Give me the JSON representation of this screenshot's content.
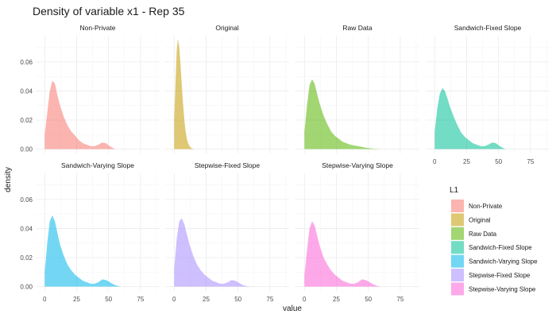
{
  "chart_data": {
    "type": "area",
    "title": "Density of variable x1 - Rep 35",
    "xlabel": "value",
    "ylabel": "density",
    "xlim": [
      -7,
      90
    ],
    "ylim": [
      -0.003,
      0.078
    ],
    "x_ticks": [
      0,
      25,
      50,
      75
    ],
    "y_ticks": [
      0.0,
      0.02,
      0.04,
      0.06
    ],
    "y_tick_labels": [
      "0.00",
      "0.02",
      "0.04",
      "0.06"
    ],
    "grid": true,
    "legend_title": "L1",
    "legend_position": "right",
    "series": [
      {
        "name": "Non-Private",
        "color": "#F8766D",
        "x": [
          0,
          2,
          4,
          6,
          8,
          10,
          12,
          15,
          18,
          21,
          24,
          27,
          30,
          33,
          36,
          39,
          42,
          45,
          48,
          51,
          54,
          56
        ],
        "y": [
          0.01,
          0.025,
          0.04,
          0.047,
          0.045,
          0.037,
          0.03,
          0.022,
          0.016,
          0.012,
          0.009,
          0.006,
          0.004,
          0.003,
          0.002,
          0.002,
          0.003,
          0.0045,
          0.004,
          0.002,
          0.0005,
          0.0
        ]
      },
      {
        "name": "Original",
        "color": "#C49A00",
        "x": [
          0,
          1,
          2,
          3,
          4,
          5,
          6,
          7,
          8,
          9,
          10,
          11,
          12,
          13,
          14,
          15,
          16
        ],
        "y": [
          0.02,
          0.045,
          0.068,
          0.076,
          0.07,
          0.058,
          0.044,
          0.031,
          0.02,
          0.012,
          0.007,
          0.004,
          0.002,
          0.001,
          0.0005,
          0.0002,
          0.0
        ]
      },
      {
        "name": "Raw Data",
        "color": "#53B400",
        "x": [
          0,
          2,
          4,
          6,
          8,
          10,
          12,
          15,
          18,
          21,
          24,
          27,
          30,
          33,
          36,
          39,
          42,
          45,
          48,
          51,
          54,
          57,
          60
        ],
        "y": [
          0.012,
          0.03,
          0.044,
          0.048,
          0.045,
          0.038,
          0.031,
          0.023,
          0.017,
          0.012,
          0.009,
          0.007,
          0.005,
          0.004,
          0.003,
          0.0025,
          0.002,
          0.0015,
          0.001,
          0.0006,
          0.0003,
          0.0001,
          0.0
        ]
      },
      {
        "name": "Sandwich-Fixed Slope",
        "color": "#00C094",
        "x": [
          0,
          2,
          4,
          6,
          8,
          10,
          12,
          15,
          18,
          21,
          24,
          27,
          30,
          33,
          36,
          39,
          42,
          45,
          48,
          51,
          54,
          56
        ],
        "y": [
          0.012,
          0.028,
          0.038,
          0.042,
          0.04,
          0.035,
          0.029,
          0.022,
          0.016,
          0.011,
          0.008,
          0.006,
          0.004,
          0.003,
          0.002,
          0.002,
          0.003,
          0.0045,
          0.004,
          0.002,
          0.0005,
          0.0
        ]
      },
      {
        "name": "Sandwich-Varying Slope",
        "color": "#00B6EB",
        "x": [
          0,
          2,
          4,
          6,
          8,
          10,
          12,
          15,
          18,
          21,
          24,
          27,
          30,
          33,
          36,
          39,
          42,
          45,
          48,
          51,
          54,
          57,
          60
        ],
        "y": [
          0.01,
          0.03,
          0.045,
          0.049,
          0.045,
          0.037,
          0.029,
          0.021,
          0.015,
          0.011,
          0.008,
          0.006,
          0.004,
          0.003,
          0.002,
          0.002,
          0.003,
          0.005,
          0.0045,
          0.003,
          0.0015,
          0.0005,
          0.0
        ]
      },
      {
        "name": "Stepwise-Fixed Slope",
        "color": "#A58AFF",
        "x": [
          0,
          2,
          4,
          6,
          8,
          10,
          12,
          15,
          18,
          21,
          24,
          27,
          30,
          33,
          36,
          39,
          42,
          45,
          48,
          51,
          54,
          57,
          60
        ],
        "y": [
          0.012,
          0.033,
          0.045,
          0.047,
          0.043,
          0.036,
          0.029,
          0.021,
          0.015,
          0.011,
          0.008,
          0.006,
          0.004,
          0.003,
          0.002,
          0.002,
          0.003,
          0.0045,
          0.004,
          0.0025,
          0.001,
          0.0003,
          0.0
        ]
      },
      {
        "name": "Stepwise-Varying Slope",
        "color": "#FB61D7",
        "x": [
          0,
          2,
          4,
          6,
          8,
          10,
          12,
          15,
          18,
          21,
          24,
          27,
          30,
          33,
          36,
          39,
          42,
          45,
          48,
          51,
          54,
          57,
          60
        ],
        "y": [
          0.008,
          0.025,
          0.04,
          0.045,
          0.042,
          0.035,
          0.028,
          0.02,
          0.015,
          0.011,
          0.008,
          0.006,
          0.004,
          0.003,
          0.002,
          0.002,
          0.003,
          0.005,
          0.0045,
          0.003,
          0.0015,
          0.0005,
          0.0
        ]
      }
    ]
  }
}
